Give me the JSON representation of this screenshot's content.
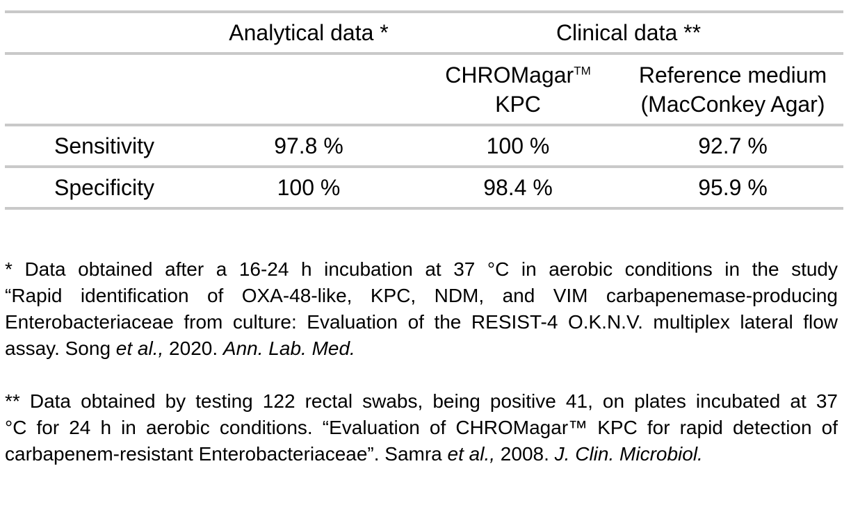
{
  "page": {
    "background_color": "#ffffff",
    "rule_color": "#c9c9c9",
    "text_color": "#000000"
  },
  "table": {
    "group_header": {
      "analytical": "Analytical data *",
      "clinical": "Clinical data **"
    },
    "column_headers": {
      "chromagar": {
        "name": "CHROMagar",
        "trademark": "TM",
        "line2": "KPC"
      },
      "reference": {
        "line1": "Reference medium",
        "line2": "(MacConkey Agar)"
      }
    },
    "rows": [
      {
        "label": "Sensitivity",
        "values": [
          "97.8 %",
          "100 %",
          "92.7 %"
        ]
      },
      {
        "label": "Specificity",
        "values": [
          "100 %",
          "98.4 %",
          "95.9 %"
        ]
      }
    ]
  },
  "footnotes": [
    {
      "lines": [
        [
          {
            "t": "* Data obtained after a 16-24 h incubation at 37 °C in aerobic conditions in the study"
          }
        ],
        [
          {
            "t": "“Rapid identification of OXA-48-like, KPC, NDM, and VIM carbapenemase-producing"
          }
        ],
        [
          {
            "t": "Enterobacteriaceae from culture: Evaluation of the RESIST-4 O.K.N.V. multiplex lateral flow"
          }
        ],
        [
          {
            "t": "assay. Song "
          },
          {
            "t": "et al.,",
            "italic": true
          },
          {
            "t": " 2020. "
          },
          {
            "t": "Ann. Lab. Med.",
            "italic": true
          }
        ]
      ]
    },
    {
      "lines": [
        [
          {
            "t": "** Data obtained by testing 122 rectal swabs, being positive 41, on plates incubated at 37"
          }
        ],
        [
          {
            "t": "°C for 24 h in aerobic conditions. “Evaluation of CHROMagar™ KPC for rapid detection of"
          }
        ],
        [
          {
            "t": "carbapenem-resistant Enterobacteriaceae”. Samra "
          },
          {
            "t": "et al.,",
            "italic": true
          },
          {
            "t": " 2008. "
          },
          {
            "t": "J. Clin. Microbiol.",
            "italic": true
          }
        ]
      ]
    }
  ]
}
